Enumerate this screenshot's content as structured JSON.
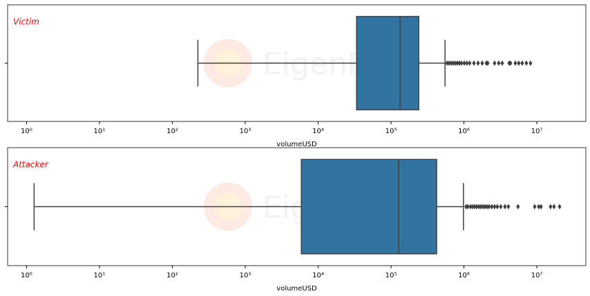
{
  "chart_data": [
    {
      "type": "box",
      "annotation": "Victim",
      "xlabel": "volumeUSD",
      "watermark": "EigenPhi",
      "color": "#3274a1",
      "xscale": "log",
      "xlim": [
        0.55,
        47000000
      ],
      "xticks": [
        {
          "value": 1,
          "label": "10⁰"
        },
        {
          "value": 10,
          "label": "10¹"
        },
        {
          "value": 100,
          "label": "10²"
        },
        {
          "value": 1000,
          "label": "10³"
        },
        {
          "value": 10000,
          "label": "10⁴"
        },
        {
          "value": 100000,
          "label": "10⁵"
        },
        {
          "value": 1000000,
          "label": "10⁶"
        },
        {
          "value": 10000000,
          "label": "10⁷"
        }
      ],
      "whisker_low": 224,
      "q1": 33700,
      "median": 133000,
      "q3": 240000,
      "whisker_high": 550000,
      "outliers": [
        585000,
        624000,
        667000,
        712000,
        760000,
        811000,
        866000,
        925000,
        1010000,
        1100000,
        1200000,
        1370000,
        1560000,
        1780000,
        2030000,
        2120000,
        2630000,
        3000000,
        3350000,
        4160000,
        4350000,
        5070000,
        5650000,
        6300000,
        7180000,
        8180000
      ]
    },
    {
      "type": "box",
      "annotation": "Attacker",
      "xlabel": "volumeUSD",
      "watermark": "EigenPhi",
      "color": "#3274a1",
      "xscale": "log",
      "xlim": [
        0.55,
        47000000
      ],
      "xticks": [
        {
          "value": 1,
          "label": "10⁰"
        },
        {
          "value": 10,
          "label": "10¹"
        },
        {
          "value": 100,
          "label": "10²"
        },
        {
          "value": 1000,
          "label": "10³"
        },
        {
          "value": 10000,
          "label": "10⁴"
        },
        {
          "value": 100000,
          "label": "10⁵"
        },
        {
          "value": 1000000,
          "label": "10⁶"
        },
        {
          "value": 10000000,
          "label": "10⁷"
        }
      ],
      "whisker_low": 1.27,
      "q1": 5880,
      "median": 127000,
      "q3": 422000,
      "whisker_high": 985000,
      "outliers": [
        1070000,
        1130000,
        1230000,
        1310000,
        1400000,
        1490000,
        1600000,
        1700000,
        1820000,
        1940000,
        2070000,
        2210000,
        2410000,
        2630000,
        2870000,
        3200000,
        3650000,
        4070000,
        5520000,
        9330000,
        10600000,
        11400000,
        15400000,
        17200000,
        20500000
      ]
    }
  ]
}
